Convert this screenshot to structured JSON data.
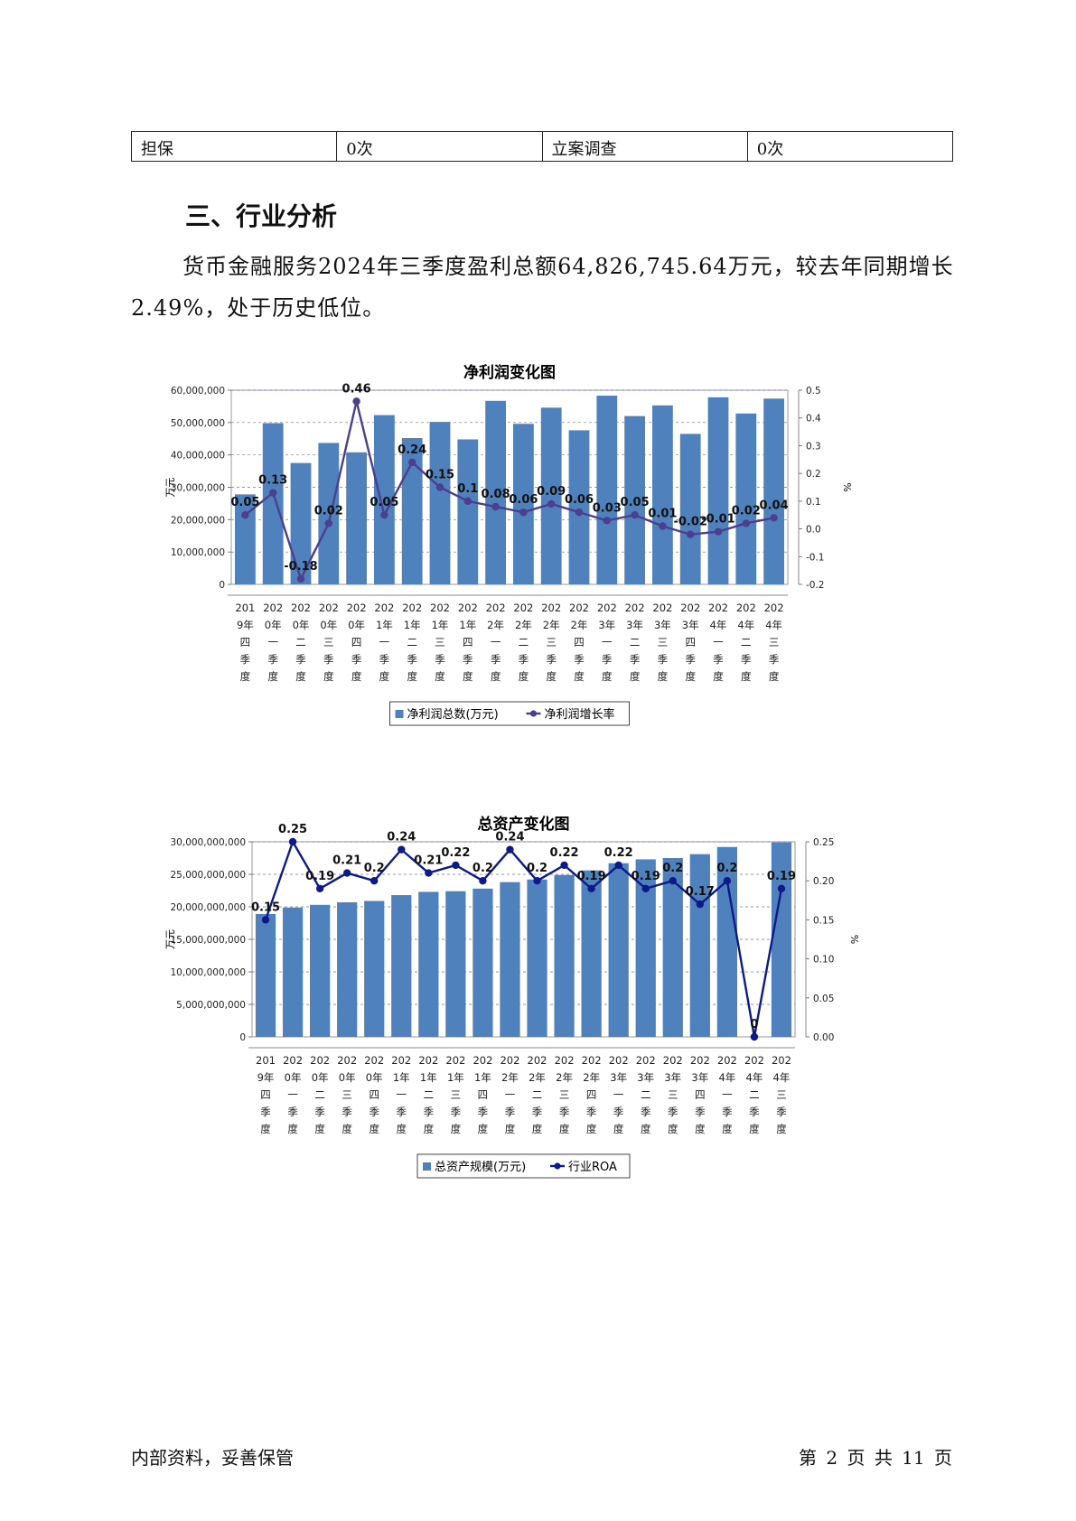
{
  "table": {
    "cells": [
      "担保",
      "0次",
      "立案调查",
      "0次"
    ]
  },
  "section": {
    "heading": "三、行业分析",
    "paragraph": "货币金融服务2024年三季度盈利总额64,826,745.64万元，较去年同期增长2.49%，处于历史低位。"
  },
  "footer": {
    "left": "内部资料，妥善保管",
    "right": "第 2 页   共 11 页"
  },
  "colors": {
    "bar": "#4f81bd",
    "profit_line": "#4b3f8f",
    "roa_line": "#0f1a8a"
  },
  "chart_data": [
    {
      "type": "bar",
      "title": "净利润变化图",
      "ylabel": "万元",
      "y2label": "%",
      "ylim": [
        0,
        60000000
      ],
      "y2lim": [
        -0.2,
        0.5
      ],
      "grid": true,
      "legend_position": "bottom",
      "categories": [
        "2019年四季度",
        "2020年一季度",
        "2020年二季度",
        "2020年三季度",
        "2020年四季度",
        "2021年一季度",
        "2021年二季度",
        "2021年三季度",
        "2021年四季度",
        "2022年一季度",
        "2022年二季度",
        "2022年三季度",
        "2022年四季度",
        "2023年一季度",
        "2023年二季度",
        "2023年三季度",
        "2023年四季度",
        "2024年一季度",
        "2024年二季度",
        "2024年三季度"
      ],
      "y_ticks": [
        "0",
        "10,000,000",
        "20,000,000",
        "30,000,000",
        "40,000,000",
        "50,000,000",
        "60,000,000"
      ],
      "y2_ticks": [
        "-0.2",
        "-0.1",
        "0.0",
        "0.1",
        "0.2",
        "0.3",
        "0.4",
        "0.5"
      ],
      "series": [
        {
          "name": "净利润总数(万元)",
          "kind": "bar",
          "values": [
            27800000,
            49800000,
            37500000,
            43700000,
            40800000,
            52300000,
            45200000,
            50200000,
            44800000,
            56700000,
            49600000,
            54600000,
            47600000,
            58300000,
            52000000,
            55300000,
            46500000,
            57800000,
            52800000,
            57400000
          ]
        },
        {
          "name": "净利润增长率",
          "kind": "line",
          "values": [
            0.05,
            0.13,
            -0.18,
            0.02,
            0.46,
            0.05,
            0.24,
            0.15,
            0.1,
            0.08,
            0.06,
            0.09,
            0.06,
            0.03,
            0.05,
            0.01,
            -0.02,
            -0.01,
            0.02,
            0.04
          ],
          "labels": [
            "0.05",
            "0.13",
            "-0.18",
            "0.02",
            "0.46",
            "0.05",
            "0.24",
            "0.15",
            "0.1",
            "0.08",
            "0.06",
            "0.09",
            "0.06",
            "0.03",
            "0.05",
            "0.01",
            "-0.02",
            "-0.01",
            "0.02",
            "0.04"
          ]
        }
      ]
    },
    {
      "type": "bar",
      "title": "总资产变化图",
      "ylabel": "万元",
      "y2label": "%",
      "ylim": [
        0,
        30000000000
      ],
      "y2lim": [
        0,
        0.25
      ],
      "grid": true,
      "legend_position": "bottom",
      "categories": [
        "2019年四季度",
        "2020年一季度",
        "2020年二季度",
        "2020年三季度",
        "2020年四季度",
        "2021年一季度",
        "2021年二季度",
        "2021年三季度",
        "2021年四季度",
        "2022年一季度",
        "2022年二季度",
        "2022年三季度",
        "2022年四季度",
        "2023年一季度",
        "2023年二季度",
        "2023年三季度",
        "2023年四季度",
        "2024年一季度",
        "2024年二季度",
        "2024年三季度"
      ],
      "y_ticks": [
        "0",
        "5,000,000,000",
        "10,000,000,000",
        "15,000,000,000",
        "20,000,000,000",
        "25,000,000,000",
        "30,000,000,000"
      ],
      "y2_ticks": [
        "0.00",
        "0.05",
        "0.10",
        "0.15",
        "0.20",
        "0.25"
      ],
      "series": [
        {
          "name": "总资产规模(万元)",
          "kind": "bar",
          "values": [
            18900000000,
            19900000000,
            20300000000,
            20700000000,
            20900000000,
            21800000000,
            22300000000,
            22400000000,
            22800000000,
            23800000000,
            24200000000,
            24900000000,
            25600000000,
            26700000000,
            27300000000,
            27500000000,
            28100000000,
            29200000000,
            0,
            29900000000
          ]
        },
        {
          "name": "行业ROA",
          "kind": "line",
          "values": [
            0.15,
            0.25,
            0.19,
            0.21,
            0.2,
            0.24,
            0.21,
            0.22,
            0.2,
            0.24,
            0.2,
            0.22,
            0.19,
            0.22,
            0.19,
            0.2,
            0.17,
            0.2,
            0,
            0.19
          ],
          "labels": [
            "0.15",
            "0.25",
            "0.19",
            "0.21",
            "0.2",
            "0.24",
            "0.21",
            "0.22",
            "0.2",
            "0.24",
            "0.2",
            "0.22",
            "0.19",
            "0.22",
            "0.19",
            "0.2",
            "0.17",
            "0.2",
            "0",
            "0.19"
          ]
        }
      ]
    }
  ]
}
